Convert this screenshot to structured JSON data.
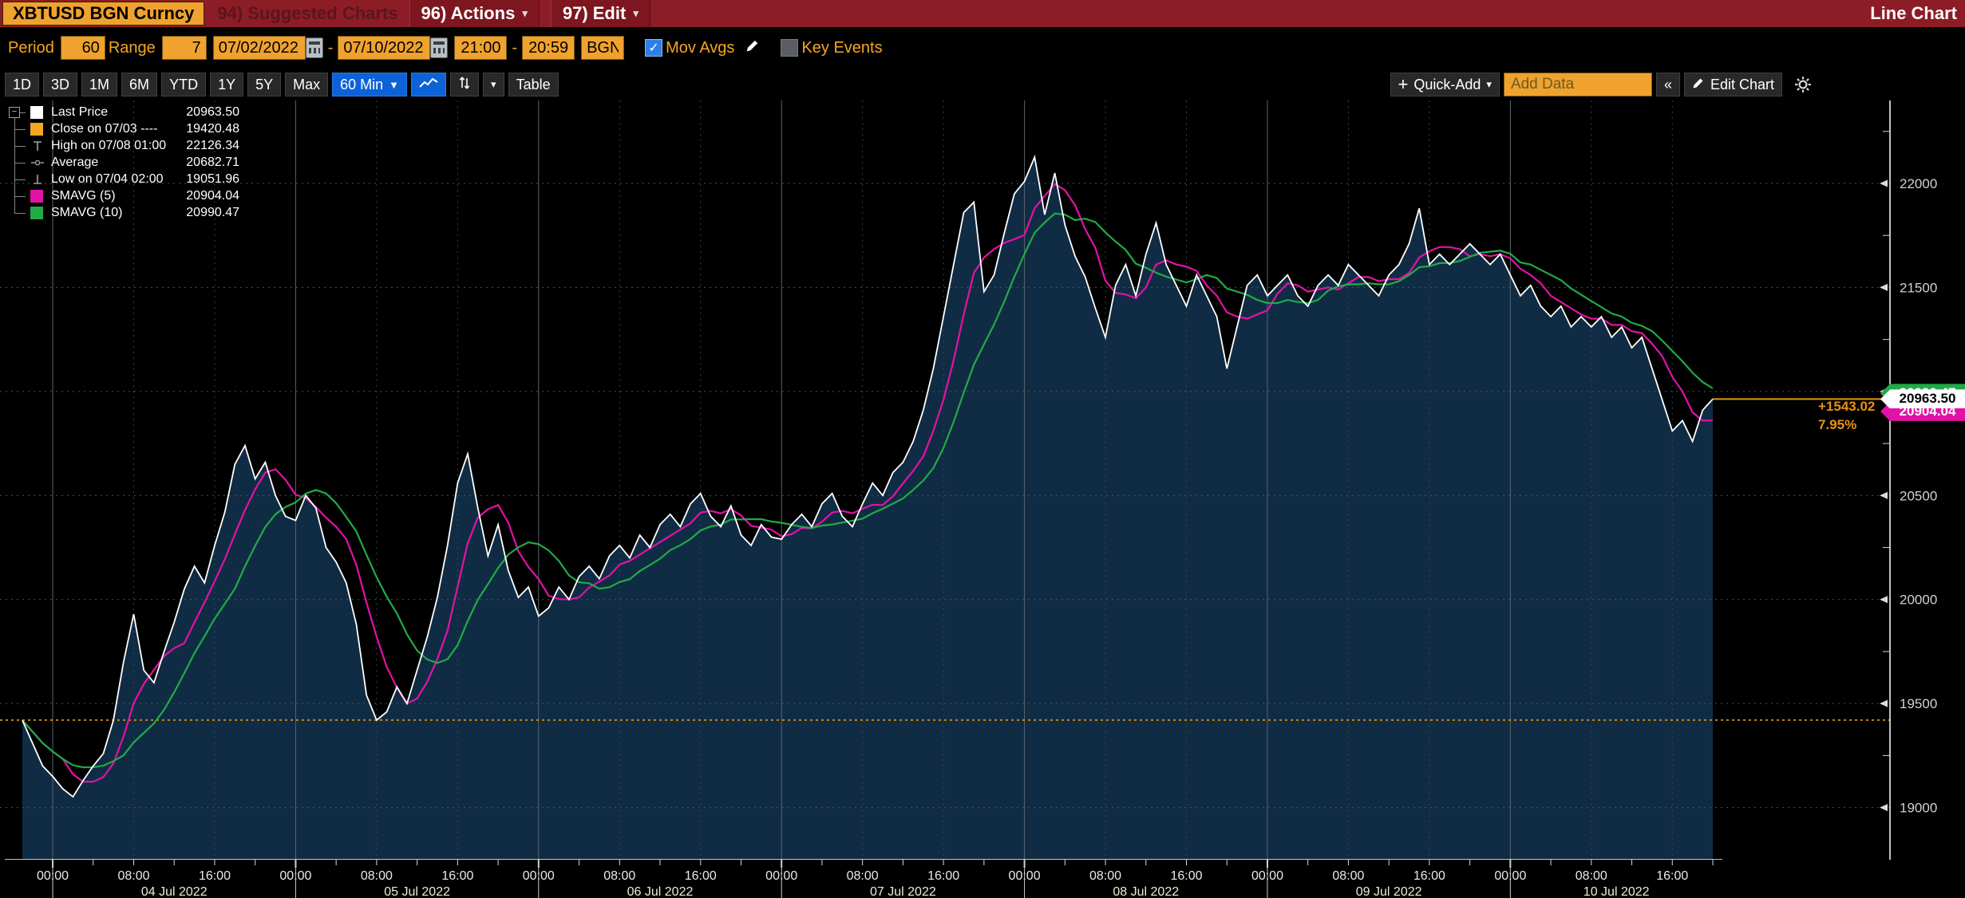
{
  "titlebar": {
    "ticker": "XBTUSD BGN Curncy",
    "suggested": "94) Suggested Charts",
    "actions": "96) Actions",
    "edit": "97) Edit",
    "chart_type": "Line Chart"
  },
  "toolbar": {
    "period_label": "Period",
    "period_value": "60",
    "range_label": "Range",
    "range_value": "7",
    "date_from": "07/02/2022",
    "date_to": "07/10/2022",
    "time_from": "21:00",
    "time_to": "20:59",
    "source": "BGN",
    "mov_avgs_label": "Mov Avgs",
    "key_events_label": "Key Events"
  },
  "tabs": {
    "ranges": [
      "1D",
      "3D",
      "1M",
      "6M",
      "YTD",
      "1Y",
      "5Y",
      "Max"
    ],
    "interval": "60 Min",
    "table": "Table",
    "quick_add": "Quick-Add",
    "add_data_placeholder": "Add Data",
    "edit_chart": "Edit Chart"
  },
  "icons": {
    "caret_down": "▼",
    "caret_small": "▾",
    "collapse": "«",
    "plus": "+",
    "check": "✓",
    "minus": "−",
    "dash": "-"
  },
  "legend": {
    "rows": [
      {
        "label": "Last Price",
        "value": "20963.50",
        "swatch": "#ffffff",
        "type": "swatch"
      },
      {
        "label": "Close on 07/03 ----",
        "value": "19420.48",
        "swatch": "#f5a623",
        "type": "swatch"
      },
      {
        "label": "High on 07/08 01:00",
        "value": "22126.34",
        "type": "high"
      },
      {
        "label": "Average",
        "value": "20682.71",
        "type": "avg"
      },
      {
        "label": "Low on 07/04 02:00",
        "value": "19051.96",
        "type": "low"
      },
      {
        "label": "SMAVG (5)",
        "value": "20904.04",
        "swatch": "#e212a6",
        "type": "swatch"
      },
      {
        "label": "SMAVG (10)",
        "value": "20990.47",
        "swatch": "#21aa47",
        "type": "swatch"
      }
    ]
  },
  "annotations": {
    "change": "+1543.02",
    "pct": "7.95%"
  },
  "axis_tags": [
    {
      "value": "20990.47",
      "price": 20990.47,
      "color": "#21aa47",
      "text": "#ffffff"
    },
    {
      "value": "20963.50",
      "price": 20963.5,
      "color": "#ffffff",
      "text": "#000000"
    },
    {
      "value": "20904.04",
      "price": 20904.04,
      "color": "#e212a6",
      "text": "#ffffff"
    }
  ],
  "chart_data": {
    "type": "area",
    "title": "XBTUSD BGN Curncy 60 Min Line Chart",
    "x_start": "07/03/2022 21:00",
    "x_end": "07/10/2022 20:59",
    "interval_minutes": 60,
    "days": [
      "04 Jul 2022",
      "05 Jul 2022",
      "06 Jul 2022",
      "07 Jul 2022",
      "08 Jul 2022",
      "09 Jul 2022",
      "10 Jul 2022"
    ],
    "time_labels": [
      "00:00",
      "08:00",
      "16:00"
    ],
    "y_axis": {
      "ticks": [
        19000,
        19500,
        20000,
        20500,
        21000,
        21500,
        22000
      ],
      "minor_step": 250,
      "range_approx": [
        18750,
        22400
      ]
    },
    "series_hourly": [
      19420,
      19310,
      19200,
      19150,
      19090,
      19051.96,
      19130,
      19200,
      19260,
      19420,
      19700,
      19930,
      19660,
      19600,
      19750,
      19890,
      20050,
      20160,
      20080,
      20260,
      20420,
      20650,
      20740,
      20580,
      20660,
      20500,
      20400,
      20380,
      20500,
      20440,
      20250,
      20180,
      20080,
      19880,
      19540,
      19420,
      19460,
      19580,
      19500,
      19660,
      19820,
      20010,
      20260,
      20560,
      20700,
      20440,
      20210,
      20360,
      20140,
      20010,
      20060,
      19920,
      19960,
      20060,
      20000,
      20110,
      20160,
      20100,
      20210,
      20260,
      20200,
      20310,
      20250,
      20360,
      20410,
      20350,
      20460,
      20510,
      20400,
      20350,
      20450,
      20310,
      20260,
      20360,
      20300,
      20290,
      20360,
      20410,
      20350,
      20460,
      20510,
      20400,
      20350,
      20460,
      20560,
      20500,
      20610,
      20660,
      20760,
      20910,
      21110,
      21360,
      21610,
      21860,
      21910,
      21480,
      21560,
      21760,
      21950,
      22010,
      22126.34,
      21850,
      22050,
      21800,
      21650,
      21550,
      21400,
      21260,
      21510,
      21610,
      21460,
      21660,
      21810,
      21610,
      21510,
      21410,
      21560,
      21460,
      21360,
      21110,
      21310,
      21510,
      21560,
      21460,
      21510,
      21560,
      21460,
      21410,
      21510,
      21560,
      21510,
      21610,
      21560,
      21510,
      21460,
      21560,
      21610,
      21710,
      21880,
      21610,
      21660,
      21610,
      21660,
      21710,
      21660,
      21610,
      21660,
      21560,
      21460,
      21510,
      21410,
      21360,
      21410,
      21310,
      21360,
      21310,
      21360,
      21260,
      21310,
      21210,
      21260,
      21110,
      20960,
      20810,
      20860,
      20760,
      20910,
      20963.5
    ],
    "last_price": 20963.5,
    "close_0703": 19420.48,
    "high": {
      "label": "High on 07/08 01:00",
      "value": 22126.34
    },
    "low": {
      "label": "Low on 07/04 02:00",
      "value": 19051.96
    },
    "average": 20682.71,
    "sma": [
      {
        "window": 5,
        "color": "#e212a6",
        "last": 20904.04
      },
      {
        "window": 10,
        "color": "#21aa47",
        "last": 20990.47
      }
    ],
    "change_annotation": {
      "abs": "+1543.02",
      "pct": "7.95%"
    },
    "colors": {
      "price_line": "#ffffff",
      "area_fill": "#102c44",
      "close_line": "#c8860d",
      "last_price_line": "#e8940f",
      "grid": "#39434e",
      "hgrid": "#4a545e",
      "day_grid": "#5a646e",
      "axis": "#ffffff",
      "tick_label": "#ccd3d9"
    }
  }
}
